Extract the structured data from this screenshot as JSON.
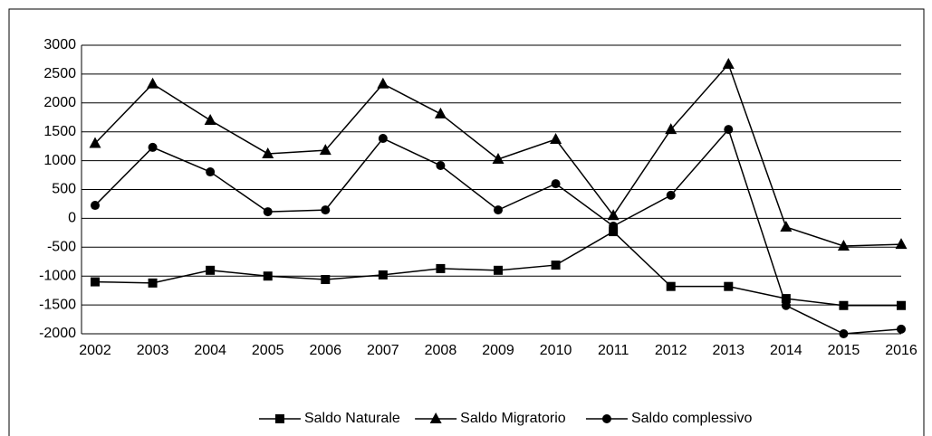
{
  "chart_data": {
    "type": "line",
    "categories": [
      "2002",
      "2003",
      "2004",
      "2005",
      "2006",
      "2007",
      "2008",
      "2009",
      "2010",
      "2011",
      "2012",
      "2013",
      "2014",
      "2015",
      "2016"
    ],
    "series": [
      {
        "name": "Saldo Naturale",
        "color": "#000000",
        "marker": "square",
        "values": [
          -1100,
          -1120,
          -900,
          -1000,
          -1060,
          -980,
          -870,
          -900,
          -810,
          -230,
          -1180,
          -1180,
          -1390,
          -1510,
          -1510
        ]
      },
      {
        "name": "Saldo Migratorio",
        "color": "#000000",
        "marker": "triangle",
        "values": [
          1300,
          2330,
          1700,
          1120,
          1180,
          2330,
          1810,
          1025,
          1370,
          50,
          1540,
          2670,
          -150,
          -480,
          -450
        ]
      },
      {
        "name": "Saldo complessivo",
        "color": "#000000",
        "marker": "circle",
        "values": [
          225,
          1230,
          805,
          115,
          145,
          1385,
          915,
          145,
          600,
          -135,
          400,
          1540,
          -1510,
          -2000,
          -1920
        ]
      }
    ],
    "ylim": [
      -2000,
      3000
    ],
    "yticks": [
      -2000,
      -1500,
      -1000,
      -500,
      0,
      500,
      1000,
      1500,
      2000,
      2500,
      3000
    ],
    "grid": true,
    "legend": "bottom"
  }
}
